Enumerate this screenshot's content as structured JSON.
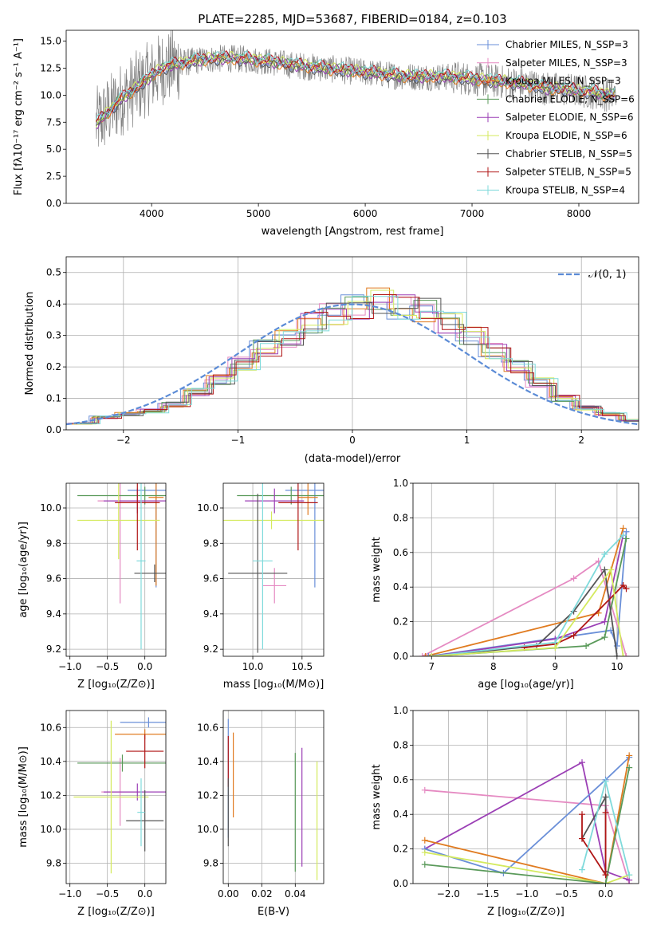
{
  "title": "PLATE=2285, MJD=53687, FIBERID=0184, z=0.103",
  "chart_data": [
    {
      "id": "spectrum",
      "type": "line",
      "xlabel": "wavelength [Angstrom, rest frame]",
      "ylabel": "Flux [fλ10⁻¹⁷ erg cm⁻² s⁻¹ A⁻¹]",
      "xlim": [
        3200,
        8560
      ],
      "ylim": [
        0,
        16
      ],
      "xticks": [
        "4000",
        "5000",
        "6000",
        "7000",
        "8000"
      ],
      "yticks": [
        "0.0",
        "2.5",
        "5.0",
        "7.5",
        "10.0",
        "12.5",
        "15.0"
      ],
      "grid": false,
      "legend": "top-right",
      "x": [
        3500,
        3700,
        3900,
        4100,
        4300,
        4500,
        4700,
        4900,
        5100,
        5300,
        5500,
        5700,
        5900,
        6100,
        6300,
        6500,
        6700,
        6900,
        7100,
        7300,
        7500,
        7700,
        7900,
        8100,
        8300
      ],
      "data_values": [
        7.5,
        9.5,
        11.0,
        12.5,
        13.0,
        13.3,
        13.4,
        13.3,
        13.1,
        12.8,
        12.6,
        12.4,
        12.2,
        12.0,
        11.8,
        11.7,
        11.7,
        11.6,
        11.4,
        11.2,
        11.0,
        10.6,
        10.5,
        10.3,
        10.0
      ],
      "data_color": "#808080",
      "series": [
        {
          "name": "Chabrier MILES, N_SSP=3",
          "color": "#6a8fd8",
          "offset": 0.0
        },
        {
          "name": "Salpeter MILES, N_SSP=3",
          "color": "#e58ac2",
          "offset": 0.1
        },
        {
          "name": "Kroupa MILES, N_SSP=3",
          "color": "#e07b20",
          "offset": -0.1
        },
        {
          "name": "Chabrier ELODIE, N_SSP=6",
          "color": "#5a9a5a",
          "offset": 0.05
        },
        {
          "name": "Salpeter ELODIE, N_SSP=6",
          "color": "#9b3fb5",
          "offset": -0.05
        },
        {
          "name": "Kroupa ELODIE, N_SSP=6",
          "color": "#d4ea5e",
          "offset": 0.15
        },
        {
          "name": "Chabrier STELIB, N_SSP=5",
          "color": "#555555",
          "offset": -0.15
        },
        {
          "name": "Salpeter STELIB, N_SSP=5",
          "color": "#b01515",
          "offset": 0.2
        },
        {
          "name": "Kroupa STELIB, N_SSP=4",
          "color": "#7fdadb",
          "offset": 0.25
        }
      ]
    },
    {
      "id": "residuals",
      "type": "line",
      "xlabel": "(data-model)/error",
      "ylabel": "Normed distribution",
      "xlim": [
        -2.5,
        2.5
      ],
      "ylim": [
        0,
        0.55
      ],
      "xticks": [
        "−2",
        "−1",
        "0",
        "1",
        "2"
      ],
      "yticks": [
        "0.0",
        "0.1",
        "0.2",
        "0.3",
        "0.4",
        "0.5"
      ],
      "grid": true,
      "legend": "top-right",
      "gaussian_label": "𝒩(0, 1)",
      "gaussian_color": "#5b8bd6",
      "bins": [
        -2.5,
        -2.3,
        -2.1,
        -1.9,
        -1.7,
        -1.5,
        -1.3,
        -1.1,
        -0.9,
        -0.7,
        -0.5,
        -0.3,
        -0.1,
        0.1,
        0.3,
        0.5,
        0.7,
        0.9,
        1.1,
        1.3,
        1.5,
        1.7,
        1.9,
        2.1,
        2.3,
        2.5
      ],
      "histogram_values": [
        0.02,
        0.04,
        0.05,
        0.06,
        0.08,
        0.12,
        0.16,
        0.21,
        0.26,
        0.29,
        0.34,
        0.37,
        0.39,
        0.41,
        0.39,
        0.38,
        0.34,
        0.3,
        0.25,
        0.2,
        0.15,
        0.1,
        0.07,
        0.05,
        0.03
      ]
    },
    {
      "id": "age-vs-Z",
      "type": "scatter",
      "xlabel": "Z [log₁₀(Z/Z⊙)]",
      "ylabel": "age  [log₁₀(age/yr)]",
      "xlim": [
        -1.05,
        0.28
      ],
      "ylim": [
        9.16,
        10.14
      ],
      "xticks": [
        "−1.0",
        "−0.5",
        "0.0"
      ],
      "yticks": [
        "9.2",
        "9.4",
        "9.6",
        "9.8",
        "10.0"
      ],
      "grid": true,
      "points": [
        {
          "color": "#6a8fd8",
          "x": 0.15,
          "y": 10.1,
          "xerr": 0.38,
          "yerr": 0.55
        },
        {
          "color": "#e58ac2",
          "x": -0.33,
          "y": 10.04,
          "xerr": 0.3,
          "yerr": 0.58
        },
        {
          "color": "#e07b20",
          "x": 0.15,
          "y": 10.06,
          "xerr": 0.1,
          "yerr": 0.5
        },
        {
          "color": "#5a9a5a",
          "x": 0.0,
          "y": 10.07,
          "xerr": 0.9,
          "yerr": 0.05
        },
        {
          "color": "#9b3fb5",
          "x": -0.1,
          "y": 10.04,
          "xerr": 0.45,
          "yerr": 0.07
        },
        {
          "color": "#d4ea5e",
          "x": -0.35,
          "y": 9.93,
          "xerr": 0.55,
          "yerr": 0.22
        },
        {
          "color": "#555555",
          "x": 0.13,
          "y": 9.63,
          "xerr": 0.27,
          "yerr": 0.05
        },
        {
          "color": "#b01515",
          "x": -0.1,
          "y": 10.03,
          "xerr": 0.3,
          "yerr": 0.27
        },
        {
          "color": "#7fdadb",
          "x": -0.05,
          "y": 9.7,
          "xerr": 0.06,
          "yerr": 0.5
        }
      ]
    },
    {
      "id": "age-vs-mass",
      "type": "scatter",
      "xlabel": "mass [log₁₀(M/M⊙)]",
      "ylabel": "",
      "xlim": [
        9.7,
        10.72
      ],
      "ylim": [
        9.16,
        10.14
      ],
      "xticks": [
        "10.0",
        "10.5"
      ],
      "yticks": [
        "9.2",
        "9.4",
        "9.6",
        "9.8",
        "10.0"
      ],
      "grid": true,
      "points": [
        {
          "color": "#6a8fd8",
          "x": 10.63,
          "y": 10.1,
          "xerr": 0.3,
          "yerr": 0.55
        },
        {
          "color": "#e58ac2",
          "x": 10.22,
          "y": 9.56,
          "xerr": 0.12,
          "yerr": 0.1
        },
        {
          "color": "#e07b20",
          "x": 10.56,
          "y": 10.06,
          "xerr": 0.1,
          "yerr": 0.1
        },
        {
          "color": "#5a9a5a",
          "x": 10.39,
          "y": 10.07,
          "xerr": 0.55,
          "yerr": 0.05
        },
        {
          "color": "#9b3fb5",
          "x": 10.22,
          "y": 10.04,
          "xerr": 0.3,
          "yerr": 0.07
        },
        {
          "color": "#d4ea5e",
          "x": 10.19,
          "y": 9.93,
          "xerr": 0.55,
          "yerr": 0.05
        },
        {
          "color": "#555555",
          "x": 10.05,
          "y": 9.63,
          "xerr": 0.3,
          "yerr": 0.45
        },
        {
          "color": "#b01515",
          "x": 10.46,
          "y": 10.03,
          "xerr": 0.2,
          "yerr": 0.27
        },
        {
          "color": "#7fdadb",
          "x": 10.1,
          "y": 9.7,
          "xerr": 0.1,
          "yerr": 0.5
        }
      ]
    },
    {
      "id": "weight-vs-age",
      "type": "line",
      "xlabel": "age  [log₁₀(age/yr)]",
      "ylabel": "mass weight",
      "xlim": [
        6.7,
        10.35
      ],
      "ylim": [
        0,
        1
      ],
      "xticks": [
        "7",
        "8",
        "9",
        "10"
      ],
      "yticks": [
        "0.0",
        "0.2",
        "0.4",
        "0.6",
        "0.8",
        "1.0"
      ],
      "grid": true,
      "series": [
        {
          "color": "#e58ac2",
          "x": [
            6.85,
            9.3,
            9.7,
            10.15
          ],
          "y": [
            0.0,
            0.45,
            0.55,
            0.0
          ]
        },
        {
          "color": "#e07b20",
          "x": [
            6.9,
            9.7,
            10.1
          ],
          "y": [
            0.0,
            0.25,
            0.74
          ]
        },
        {
          "color": "#6a8fd8",
          "x": [
            6.95,
            9.9,
            10.0,
            10.15
          ],
          "y": [
            0.0,
            0.15,
            0.06,
            0.72
          ]
        },
        {
          "color": "#9b3fb5",
          "x": [
            7.0,
            9.0,
            9.8,
            10.1
          ],
          "y": [
            0.0,
            0.1,
            0.2,
            0.7
          ]
        },
        {
          "color": "#5a9a5a",
          "x": [
            7.0,
            9.5,
            9.8,
            10.15
          ],
          "y": [
            0.0,
            0.06,
            0.11,
            0.68
          ]
        },
        {
          "color": "#555555",
          "x": [
            7.0,
            8.7,
            9.3,
            9.8,
            10.0
          ],
          "y": [
            0.0,
            0.06,
            0.26,
            0.5,
            0.0
          ]
        },
        {
          "color": "#b01515",
          "x": [
            8.5,
            9.0,
            9.3,
            10.1,
            10.15
          ],
          "y": [
            0.05,
            0.07,
            0.12,
            0.41,
            0.39
          ]
        },
        {
          "color": "#7fdadb",
          "x": [
            7.0,
            9.0,
            9.8,
            10.1
          ],
          "y": [
            0.0,
            0.08,
            0.59,
            0.7
          ]
        },
        {
          "color": "#d4ea5e",
          "x": [
            7.0,
            9.0,
            9.9,
            10.1
          ],
          "y": [
            0.0,
            0.05,
            0.5,
            0.0
          ]
        }
      ]
    },
    {
      "id": "mass-vs-Z",
      "type": "scatter",
      "xlabel": "Z [log₁₀(Z/Z⊙)]",
      "ylabel": "mass [log₁₀(M/M⊙)]",
      "xlim": [
        -1.05,
        0.28
      ],
      "ylim": [
        9.68,
        10.7
      ],
      "xticks": [
        "−1.0",
        "−0.5",
        "0.0"
      ],
      "yticks": [
        "9.8",
        "10.0",
        "10.2",
        "10.4",
        "10.6"
      ],
      "grid": true,
      "points": [
        {
          "color": "#6a8fd8",
          "x": 0.05,
          "y": 10.63,
          "xerr": 0.38,
          "yerr": 0.03
        },
        {
          "color": "#e07b20",
          "x": 0.0,
          "y": 10.56,
          "xerr": 0.4,
          "yerr": 0.03
        },
        {
          "color": "#e58ac2",
          "x": -0.33,
          "y": 10.22,
          "xerr": 0.25,
          "yerr": 0.2
        },
        {
          "color": "#5a9a5a",
          "x": -0.3,
          "y": 10.39,
          "xerr": 0.6,
          "yerr": 0.05
        },
        {
          "color": "#9b3fb5",
          "x": -0.1,
          "y": 10.22,
          "xerr": 0.45,
          "yerr": 0.05
        },
        {
          "color": "#d4ea5e",
          "x": -0.45,
          "y": 10.19,
          "xerr": 0.5,
          "yerr": 0.45
        },
        {
          "color": "#555555",
          "x": -0.0,
          "y": 10.05,
          "xerr": 0.25,
          "yerr": 0.18
        },
        {
          "color": "#b01515",
          "x": -0.0,
          "y": 10.46,
          "xerr": 0.25,
          "yerr": 0.1
        },
        {
          "color": "#7fdadb",
          "x": -0.05,
          "y": 10.1,
          "xerr": 0.05,
          "yerr": 0.2
        }
      ]
    },
    {
      "id": "mass-vs-EBV",
      "type": "scatter",
      "xlabel": "E(B-V)",
      "ylabel": "",
      "xlim": [
        -0.003,
        0.057
      ],
      "ylim": [
        9.68,
        10.7
      ],
      "xticks": [
        "0.00",
        "0.02",
        "0.04"
      ],
      "yticks": [
        "9.8",
        "10.0",
        "10.2",
        "10.4",
        "10.6"
      ],
      "grid": true,
      "points": [
        {
          "color": "#6a8fd8",
          "x": 0.0,
          "y": 10.3,
          "xerr": 0,
          "yerr": 0.35
        },
        {
          "color": "#e07b20",
          "x": 0.003,
          "y": 10.32,
          "xerr": 0,
          "yerr": 0.25
        },
        {
          "color": "#b01515",
          "x": 0.0,
          "y": 10.4,
          "xerr": 0,
          "yerr": 0.15
        },
        {
          "color": "#555555",
          "x": 0.0,
          "y": 10.1,
          "xerr": 0,
          "yerr": 0.2
        },
        {
          "color": "#5a9a5a",
          "x": 0.04,
          "y": 10.1,
          "xerr": 0,
          "yerr": 0.35
        },
        {
          "color": "#9b3fb5",
          "x": 0.044,
          "y": 10.13,
          "xerr": 0,
          "yerr": 0.35
        },
        {
          "color": "#d4ea5e",
          "x": 0.053,
          "y": 10.05,
          "xerr": 0,
          "yerr": 0.35
        }
      ]
    },
    {
      "id": "weight-vs-Z",
      "type": "line",
      "xlabel": "Z [log₁₀(Z/Z⊙)]",
      "ylabel": "mass weight",
      "xlim": [
        -2.45,
        0.42
      ],
      "ylim": [
        0,
        1
      ],
      "xticks": [
        "−2.0",
        "−1.5",
        "−1.0",
        "−0.5",
        "0.0"
      ],
      "yticks": [
        "0.0",
        "0.2",
        "0.4",
        "0.6",
        "0.8",
        "1.0"
      ],
      "grid": true,
      "series": [
        {
          "color": "#e58ac2",
          "x": [
            -2.3,
            0.0,
            0.3
          ],
          "y": [
            0.54,
            0.45,
            0.0
          ]
        },
        {
          "color": "#9b3fb5",
          "x": [
            -2.3,
            -0.3,
            0.0,
            0.3
          ],
          "y": [
            0.2,
            0.7,
            0.07,
            0.02
          ]
        },
        {
          "color": "#6a8fd8",
          "x": [
            -2.3,
            -1.3,
            0.0,
            0.3
          ],
          "y": [
            0.2,
            0.06,
            0.6,
            0.73
          ]
        },
        {
          "color": "#e07b20",
          "x": [
            -2.3,
            0.0,
            0.3
          ],
          "y": [
            0.25,
            0.0,
            0.74
          ]
        },
        {
          "color": "#d4ea5e",
          "x": [
            -2.3,
            0.0,
            0.3
          ],
          "y": [
            0.18,
            0.0,
            0.05
          ]
        },
        {
          "color": "#5a9a5a",
          "x": [
            -2.3,
            0.0,
            0.3
          ],
          "y": [
            0.11,
            0.0,
            0.67
          ]
        },
        {
          "color": "#555555",
          "x": [
            -0.3,
            0.0,
            0.0
          ],
          "y": [
            0.26,
            0.5,
            0.07
          ]
        },
        {
          "color": "#b01515",
          "x": [
            -0.3,
            -0.3,
            0.0,
            0.0
          ],
          "y": [
            0.4,
            0.26,
            0.05,
            0.41
          ]
        },
        {
          "color": "#7fdadb",
          "x": [
            -0.3,
            0.0,
            0.3
          ],
          "y": [
            0.08,
            0.59,
            0.05
          ]
        }
      ]
    }
  ]
}
